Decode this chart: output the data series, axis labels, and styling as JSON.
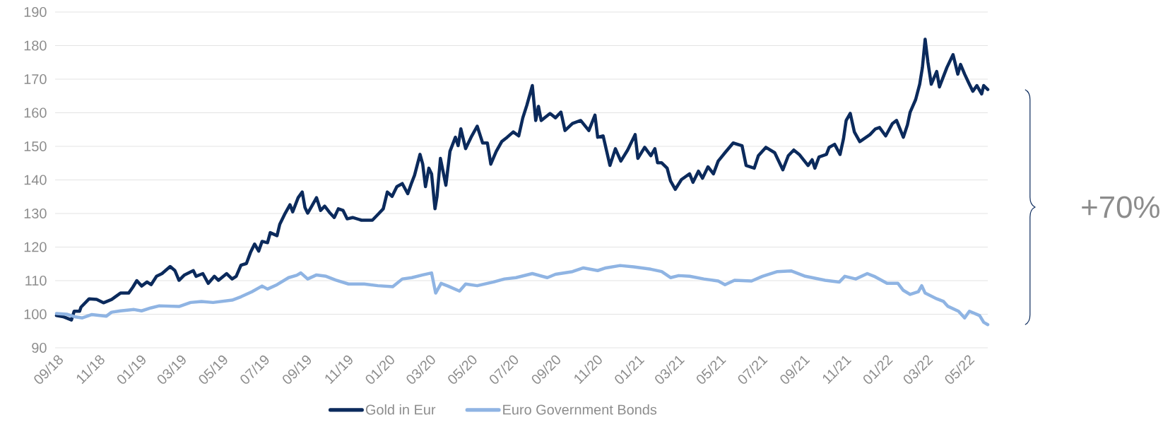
{
  "chart_data": {
    "type": "line",
    "xlim": [
      "2018-09-01",
      "2022-06-02"
    ],
    "ylim": [
      90,
      190
    ],
    "yticks": [
      90,
      100,
      110,
      120,
      130,
      140,
      150,
      160,
      170,
      180,
      190
    ],
    "xticks": [
      {
        "value": "2018-09-01",
        "label": "09/18"
      },
      {
        "value": "2018-11-01",
        "label": "11/18"
      },
      {
        "value": "2019-01-01",
        "label": "01/19"
      },
      {
        "value": "2019-03-01",
        "label": "03/19"
      },
      {
        "value": "2019-05-01",
        "label": "05/19"
      },
      {
        "value": "2019-07-01",
        "label": "07/19"
      },
      {
        "value": "2019-09-01",
        "label": "09/19"
      },
      {
        "value": "2019-11-01",
        "label": "11/19"
      },
      {
        "value": "2020-01-01",
        "label": "01/20"
      },
      {
        "value": "2020-03-01",
        "label": "03/20"
      },
      {
        "value": "2020-05-01",
        "label": "05/20"
      },
      {
        "value": "2020-07-01",
        "label": "07/20"
      },
      {
        "value": "2020-09-01",
        "label": "09/20"
      },
      {
        "value": "2020-11-01",
        "label": "11/20"
      },
      {
        "value": "2021-01-01",
        "label": "01/21"
      },
      {
        "value": "2021-03-01",
        "label": "03/21"
      },
      {
        "value": "2021-05-01",
        "label": "05/21"
      },
      {
        "value": "2021-07-01",
        "label": "07/21"
      },
      {
        "value": "2021-09-01",
        "label": "09/21"
      },
      {
        "value": "2021-11-01",
        "label": "11/21"
      },
      {
        "value": "2022-01-01",
        "label": "01/22"
      },
      {
        "value": "2022-03-01",
        "label": "03/22"
      },
      {
        "value": "2022-05-01",
        "label": "05/22"
      }
    ],
    "grid": "y",
    "legend": "bottom",
    "annotations": [
      "+70%"
    ],
    "series": [
      {
        "name": "Gold in Eur",
        "color": "#0b2a5c",
        "x": [
          "2018-09-03",
          "2018-09-14",
          "2018-09-25",
          "2018-09-29",
          "2018-10-07",
          "2018-10-09",
          "2018-10-21",
          "2018-11-01",
          "2018-11-11",
          "2018-11-23",
          "2018-12-06",
          "2018-12-18",
          "2018-12-24",
          "2018-12-30",
          "2019-01-06",
          "2019-01-14",
          "2019-01-20",
          "2019-01-28",
          "2019-02-05",
          "2019-02-17",
          "2019-02-24",
          "2019-03-02",
          "2019-03-10",
          "2019-03-23",
          "2019-03-27",
          "2019-04-06",
          "2019-04-14",
          "2019-04-23",
          "2019-04-29",
          "2019-05-11",
          "2019-05-19",
          "2019-05-25",
          "2019-06-01",
          "2019-06-09",
          "2019-06-15",
          "2019-06-21",
          "2019-06-27",
          "2019-07-02",
          "2019-07-10",
          "2019-07-14",
          "2019-07-24",
          "2019-07-28",
          "2019-08-04",
          "2019-08-12",
          "2019-08-16",
          "2019-08-24",
          "2019-08-30",
          "2019-09-03",
          "2019-09-07",
          "2019-09-13",
          "2019-09-20",
          "2019-09-26",
          "2019-10-02",
          "2019-10-10",
          "2019-10-16",
          "2019-10-22",
          "2019-10-29",
          "2019-11-04",
          "2019-11-12",
          "2019-11-25",
          "2019-12-11",
          "2019-12-21",
          "2019-12-27",
          "2020-01-02",
          "2020-01-09",
          "2020-01-16",
          "2020-01-24",
          "2020-02-01",
          "2020-02-07",
          "2020-02-11",
          "2020-02-19",
          "2020-02-23",
          "2020-02-27",
          "2020-03-03",
          "2020-03-07",
          "2020-03-12",
          "2020-03-15",
          "2020-03-20",
          "2020-03-28",
          "2020-04-03",
          "2020-04-11",
          "2020-04-15",
          "2020-04-19",
          "2020-04-26",
          "2020-05-04",
          "2020-05-13",
          "2020-05-21",
          "2020-05-28",
          "2020-06-02",
          "2020-06-10",
          "2020-06-18",
          "2020-06-26",
          "2020-07-05",
          "2020-07-13",
          "2020-07-19",
          "2020-07-25",
          "2020-08-02",
          "2020-08-07",
          "2020-08-11",
          "2020-08-15",
          "2020-08-28",
          "2020-09-05",
          "2020-09-13",
          "2020-09-19",
          "2020-09-30",
          "2020-10-12",
          "2020-10-24",
          "2020-11-02",
          "2020-11-06",
          "2020-11-14",
          "2020-11-24",
          "2020-12-02",
          "2020-12-10",
          "2020-12-20",
          "2020-12-31",
          "2021-01-04",
          "2021-01-14",
          "2021-01-23",
          "2021-01-29",
          "2021-02-02",
          "2021-02-08",
          "2021-02-16",
          "2021-02-21",
          "2021-02-28",
          "2021-03-09",
          "2021-03-21",
          "2021-03-26",
          "2021-04-03",
          "2021-04-09",
          "2021-04-17",
          "2021-04-25",
          "2021-05-02",
          "2021-05-12",
          "2021-05-24",
          "2021-06-06",
          "2021-06-12",
          "2021-06-24",
          "2021-06-30",
          "2021-07-11",
          "2021-07-24",
          "2021-08-05",
          "2021-08-13",
          "2021-08-21",
          "2021-08-29",
          "2021-09-11",
          "2021-09-17",
          "2021-09-21",
          "2021-09-27",
          "2021-10-08",
          "2021-10-12",
          "2021-10-20",
          "2021-10-28",
          "2021-11-02",
          "2021-11-06",
          "2021-11-12",
          "2021-11-18",
          "2021-11-26",
          "2021-12-11",
          "2021-12-19",
          "2021-12-25",
          "2022-01-03",
          "2022-01-13",
          "2022-01-19",
          "2022-01-29",
          "2022-02-04",
          "2022-02-08",
          "2022-02-16",
          "2022-02-22",
          "2022-02-26",
          "2022-03-02",
          "2022-03-06",
          "2022-03-11",
          "2022-03-19",
          "2022-03-23",
          "2022-04-03",
          "2022-04-12",
          "2022-04-19",
          "2022-04-23",
          "2022-04-29",
          "2022-05-05",
          "2022-05-11",
          "2022-05-17",
          "2022-05-24",
          "2022-05-27",
          "2022-06-02"
        ],
        "values": [
          99.6,
          99.2,
          98.3,
          100.9,
          100.9,
          102.1,
          104.6,
          104.4,
          103.4,
          104.4,
          106.3,
          106.3,
          108.0,
          110.0,
          108.4,
          109.6,
          108.8,
          111.3,
          112.1,
          114.2,
          113.0,
          110.1,
          111.7,
          113.0,
          111.3,
          112.1,
          109.2,
          111.3,
          110.1,
          112.1,
          110.5,
          111.3,
          114.6,
          115.1,
          118.4,
          120.9,
          118.8,
          121.7,
          121.3,
          124.3,
          123.4,
          126.8,
          129.7,
          132.6,
          130.5,
          134.7,
          136.4,
          131.8,
          130.1,
          132.2,
          134.7,
          130.9,
          132.2,
          130.1,
          128.8,
          131.4,
          130.9,
          128.4,
          128.8,
          128.0,
          128.0,
          130.1,
          131.4,
          136.4,
          135.1,
          138.0,
          138.9,
          135.9,
          139.3,
          141.4,
          147.6,
          144.7,
          138.0,
          143.5,
          141.8,
          131.4,
          135.1,
          146.4,
          138.4,
          148.5,
          152.7,
          150.2,
          155.2,
          149.3,
          152.7,
          156.0,
          151.0,
          151.0,
          144.7,
          148.5,
          151.4,
          152.7,
          154.3,
          153.1,
          158.5,
          162.3,
          168.1,
          157.7,
          161.9,
          157.7,
          159.8,
          158.5,
          160.2,
          154.7,
          156.8,
          157.7,
          154.7,
          159.3,
          152.7,
          153.1,
          144.3,
          149.3,
          145.6,
          148.9,
          153.5,
          146.4,
          149.7,
          147.2,
          149.3,
          145.1,
          145.1,
          143.5,
          139.7,
          137.2,
          140.1,
          141.8,
          139.3,
          142.6,
          140.5,
          143.9,
          141.8,
          145.6,
          148.1,
          151.0,
          150.2,
          144.3,
          143.5,
          147.2,
          149.7,
          148.1,
          143.0,
          147.2,
          148.9,
          147.6,
          144.3,
          146.0,
          143.5,
          146.8,
          147.6,
          149.7,
          150.6,
          147.6,
          152.2,
          157.7,
          159.8,
          154.3,
          151.4,
          153.5,
          155.2,
          155.6,
          153.1,
          156.8,
          157.7,
          152.7,
          156.4,
          160.2,
          163.9,
          168.5,
          173.5,
          181.9,
          175.2,
          168.5,
          172.3,
          167.7,
          173.5,
          177.3,
          171.5,
          174.4,
          171.5,
          168.9,
          166.4,
          168.1,
          165.6,
          168.1,
          166.9
        ]
      },
      {
        "name": "Euro Government Bonds",
        "color": "#8fb4e3",
        "x": [
          "2018-09-03",
          "2018-09-18",
          "2018-10-01",
          "2018-10-11",
          "2018-10-25",
          "2018-11-15",
          "2018-11-23",
          "2018-12-06",
          "2018-12-26",
          "2019-01-06",
          "2019-01-20",
          "2019-02-01",
          "2019-03-02",
          "2019-03-19",
          "2019-04-04",
          "2019-04-21",
          "2019-05-19",
          "2019-06-01",
          "2019-06-17",
          "2019-07-02",
          "2019-07-10",
          "2019-07-24",
          "2019-08-10",
          "2019-08-22",
          "2019-08-28",
          "2019-09-07",
          "2019-09-20",
          "2019-10-04",
          "2019-10-18",
          "2019-11-06",
          "2019-11-29",
          "2019-12-19",
          "2020-01-10",
          "2020-01-24",
          "2020-02-07",
          "2020-02-23",
          "2020-03-07",
          "2020-03-13",
          "2020-03-21",
          "2020-03-31",
          "2020-04-17",
          "2020-04-26",
          "2020-05-13",
          "2020-06-06",
          "2020-06-22",
          "2020-07-09",
          "2020-08-02",
          "2020-08-24",
          "2020-09-05",
          "2020-09-30",
          "2020-10-16",
          "2020-11-06",
          "2020-11-18",
          "2020-12-09",
          "2020-12-29",
          "2021-01-23",
          "2021-02-08",
          "2021-02-21",
          "2021-03-05",
          "2021-03-21",
          "2021-04-11",
          "2021-05-02",
          "2021-05-12",
          "2021-05-26",
          "2021-06-20",
          "2021-07-06",
          "2021-07-28",
          "2021-08-17",
          "2021-09-07",
          "2021-10-06",
          "2021-10-27",
          "2021-11-04",
          "2021-11-20",
          "2021-12-07",
          "2021-12-17",
          "2022-01-05",
          "2022-01-21",
          "2022-01-29",
          "2022-02-08",
          "2022-02-20",
          "2022-02-25",
          "2022-03-02",
          "2022-03-19",
          "2022-03-29",
          "2022-04-04",
          "2022-04-20",
          "2022-04-29",
          "2022-05-06",
          "2022-05-21",
          "2022-05-27",
          "2022-06-02"
        ],
        "values": [
          100.2,
          100.0,
          99.2,
          98.9,
          99.9,
          99.4,
          100.6,
          101.0,
          101.4,
          101.0,
          101.9,
          102.5,
          102.3,
          103.5,
          103.8,
          103.5,
          104.2,
          105.2,
          106.7,
          108.4,
          107.5,
          108.8,
          110.9,
          111.6,
          112.3,
          110.5,
          111.7,
          111.3,
          110.2,
          109.0,
          109.0,
          108.5,
          108.2,
          110.5,
          110.9,
          111.7,
          112.3,
          106.3,
          109.2,
          108.4,
          106.9,
          109.0,
          108.5,
          109.6,
          110.5,
          110.9,
          112.1,
          110.9,
          111.9,
          112.7,
          113.8,
          113.0,
          113.8,
          114.5,
          114.1,
          113.4,
          112.7,
          110.9,
          111.5,
          111.3,
          110.5,
          109.9,
          108.8,
          110.1,
          109.9,
          111.3,
          112.7,
          112.9,
          111.3,
          110.1,
          109.6,
          111.3,
          110.5,
          112.1,
          111.3,
          109.2,
          109.2,
          107.1,
          105.9,
          106.7,
          108.5,
          106.3,
          104.6,
          103.8,
          102.4,
          100.9,
          98.9,
          100.9,
          99.6,
          97.6,
          96.9
        ]
      }
    ]
  }
}
